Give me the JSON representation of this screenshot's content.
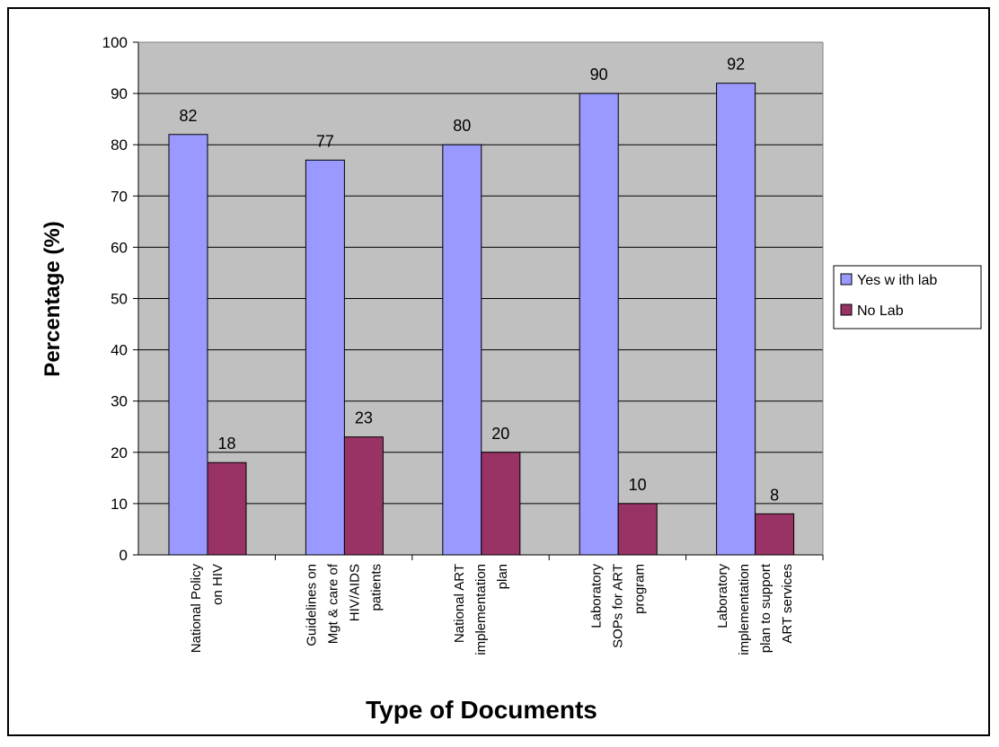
{
  "chart_data": {
    "type": "bar",
    "title": "",
    "xlabel": "Type of Documents",
    "ylabel": "Percentage (%)",
    "ylim": [
      0,
      100
    ],
    "yticks": [
      "0",
      "10",
      "20",
      "30",
      "40",
      "50",
      "60",
      "70",
      "80",
      "90",
      "100"
    ],
    "grid": true,
    "legend_position": "right",
    "categories": [
      [
        "National Policy",
        "on HIV"
      ],
      [
        "Guidelines on",
        "Mgt & care of",
        "HIV/AIDS",
        "patients"
      ],
      [
        "National ART",
        "implementation",
        "plan"
      ],
      [
        "Laboratory",
        "SOPs for ART",
        "program"
      ],
      [
        "Laboratory",
        "implementation",
        "plan to support",
        "ART services"
      ]
    ],
    "series": [
      {
        "name": "Yes w ith lab",
        "color": "#9999ff",
        "values": [
          82,
          77,
          80,
          90,
          92
        ],
        "labels": [
          "82",
          "77",
          "80",
          "90",
          "92"
        ]
      },
      {
        "name": "No Lab",
        "color": "#993366",
        "values": [
          18,
          23,
          20,
          10,
          8
        ],
        "labels": [
          "18",
          "23",
          "20",
          "10",
          "8"
        ]
      }
    ],
    "plot_background": "#c0c0c0"
  }
}
